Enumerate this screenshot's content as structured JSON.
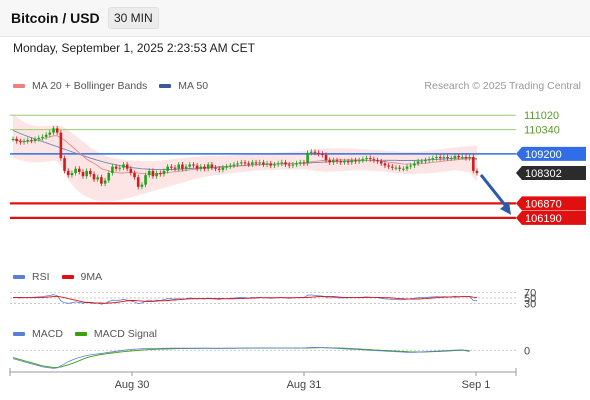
{
  "header": {
    "pair": "Bitcoin / USD",
    "timeframe": "30 MIN"
  },
  "timestamp": "Monday, September 1, 2025 2:23:53 AM CET",
  "legend_price": [
    {
      "label": "MA 20 + Bollinger Bands",
      "color": "#f08080"
    },
    {
      "label": "MA 50",
      "color": "#3a5a9a"
    }
  ],
  "credit": "Research © 2025 Trading Central",
  "legend_rsi": [
    {
      "label": "RSI",
      "color": "#5b7fd6"
    },
    {
      "label": "9MA",
      "color": "#e01010"
    }
  ],
  "legend_macd": [
    {
      "label": "MACD",
      "color": "#5b7fd6"
    },
    {
      "label": "MACD Signal",
      "color": "#3aa10a"
    }
  ],
  "colors": {
    "up": "#1aa51a",
    "down": "#d11c1c",
    "resistance": "#98cf6a",
    "pivot": "#2f6ee6",
    "support": "#e01010",
    "last": "#2b2b2b",
    "band_fill": "#fde2e2",
    "arrow": "#2a5aa8"
  },
  "chart_data": {
    "type": "candlestick",
    "price_range": [
      104300,
      112300
    ],
    "x_labels": [
      "Aug 30",
      "Aug 31",
      "Sep 1"
    ],
    "levels": [
      {
        "value": 111020,
        "label": "111020",
        "kind": "resistance"
      },
      {
        "value": 110340,
        "label": "110340",
        "kind": "resistance"
      },
      {
        "value": 109200,
        "label": "109200",
        "kind": "pivot"
      },
      {
        "value": 108302,
        "label": "108302",
        "kind": "last"
      },
      {
        "value": 106870,
        "label": "106870",
        "kind": "support"
      },
      {
        "value": 106190,
        "label": "106190",
        "kind": "support"
      }
    ],
    "close": [
      109900,
      109800,
      109750,
      109800,
      109850,
      109820,
      109900,
      109950,
      110000,
      110100,
      110200,
      110400,
      110200,
      109000,
      108400,
      108200,
      108300,
      108500,
      108350,
      108150,
      108400,
      108250,
      108000,
      108100,
      107800,
      107950,
      108300,
      108600,
      108500,
      108550,
      108700,
      108500,
      108300,
      108100,
      107650,
      107750,
      108200,
      108400,
      108150,
      108300,
      108250,
      108400,
      108600,
      108550,
      108500,
      108700,
      108500,
      108600,
      108700,
      108650,
      108500,
      108600,
      108500,
      108700,
      108550,
      108500,
      108450,
      108550,
      108600,
      108650,
      108700,
      108750,
      108800,
      108750,
      108700,
      108800,
      108750,
      108800,
      108700,
      108750,
      108650,
      108700,
      108750,
      108800,
      108700,
      108650,
      108700,
      108750,
      108800,
      108750,
      109250,
      109300,
      109250,
      109200,
      109150,
      108900,
      108800,
      108900,
      108850,
      108800,
      108850,
      108800,
      108900,
      108850,
      108900,
      108950,
      109000,
      108950,
      108900,
      108850,
      108750,
      108650,
      108600,
      108550,
      108550,
      108500,
      108500,
      108600,
      108650,
      108750,
      108850,
      108850,
      108900,
      108950,
      109000,
      109050,
      109000,
      109050,
      109000,
      109000,
      109100,
      109050,
      109050,
      109000,
      109050,
      108400,
      108302
    ],
    "ma20": [
      109900,
      109860,
      109800,
      109780,
      109780,
      109800,
      109830,
      109860,
      109900,
      109950,
      110000,
      110050,
      110050,
      109950,
      109850,
      109700,
      109550,
      109400,
      109250,
      109100,
      108950,
      108850,
      108750,
      108650,
      108500,
      108450,
      108400,
      108350,
      108330,
      108300,
      108300,
      108320,
      108330,
      108330,
      108300,
      108280,
      108260,
      108250,
      108250,
      108250,
      108270,
      108300,
      108320,
      108340,
      108360,
      108380,
      108400,
      108420,
      108450,
      108470,
      108490,
      108510,
      108520,
      108530,
      108540,
      108550,
      108560,
      108570,
      108580,
      108600,
      108610,
      108620,
      108640,
      108650,
      108660,
      108680,
      108690,
      108700,
      108710,
      108720,
      108720,
      108730,
      108730,
      108740,
      108740,
      108740,
      108740,
      108750,
      108760,
      108770,
      108800,
      108830,
      108850,
      108870,
      108890,
      108900,
      108910,
      108910,
      108920,
      108920,
      108920,
      108920,
      108920,
      108920,
      108910,
      108910,
      108900,
      108890,
      108880,
      108870,
      108850,
      108830,
      108810,
      108790,
      108770,
      108750,
      108730,
      108720,
      108720,
      108720,
      108730,
      108740,
      108760,
      108780,
      108800,
      108820,
      108840,
      108860,
      108880,
      108900,
      108920,
      108930,
      108950,
      108960,
      108970,
      108950,
      108930
    ],
    "ma50": [
      110300,
      110230,
      110160,
      110090,
      110020,
      109960,
      109900,
      109840,
      109780,
      109720,
      109660,
      109600,
      109540,
      109480,
      109420,
      109360,
      109300,
      109240,
      109180,
      109120,
      109060,
      109000,
      108950,
      108900,
      108850,
      108800,
      108760,
      108720,
      108680,
      108650,
      108620,
      108590,
      108560,
      108540,
      108520,
      108500,
      108490,
      108480,
      108470,
      108460,
      108460,
      108460,
      108460,
      108460,
      108470,
      108480,
      108490,
      108500,
      108510,
      108520,
      108530,
      108540,
      108550,
      108560,
      108570,
      108580,
      108590,
      108600,
      108610,
      108620,
      108630,
      108640,
      108650,
      108660,
      108670,
      108680,
      108690,
      108700,
      108700,
      108710,
      108710,
      108720,
      108720,
      108730,
      108730,
      108740,
      108740,
      108750,
      108750,
      108760,
      108770,
      108780,
      108790,
      108800,
      108810,
      108820,
      108830,
      108840,
      108850,
      108850,
      108860,
      108860,
      108870,
      108870,
      108880,
      108880,
      108890,
      108890,
      108900,
      108900,
      108900,
      108900,
      108900,
      108900,
      108900,
      108890,
      108890,
      108890,
      108890,
      108890,
      108900,
      108900,
      108910,
      108920,
      108930,
      108940,
      108950,
      108960,
      108970,
      108980,
      108990,
      109000,
      109000,
      109010,
      109020,
      109000,
      108980
    ],
    "bb_upper": [
      111100,
      110950,
      110800,
      110700,
      110620,
      110560,
      110520,
      110500,
      110500,
      110510,
      110520,
      110540,
      110540,
      110500,
      110420,
      110320,
      110200,
      110060,
      109920,
      109780,
      109640,
      109520,
      109400,
      109300,
      109200,
      109120,
      109060,
      109010,
      108970,
      108940,
      108920,
      108900,
      108890,
      108880,
      108870,
      108860,
      108860,
      108860,
      108860,
      108870,
      108880,
      108900,
      108920,
      108940,
      108960,
      108980,
      109000,
      109020,
      109040,
      109060,
      109070,
      109080,
      109090,
      109100,
      109100,
      109100,
      109100,
      109110,
      109120,
      109130,
      109140,
      109150,
      109160,
      109170,
      109180,
      109190,
      109200,
      109210,
      109220,
      109230,
      109240,
      109250,
      109260,
      109270,
      109280,
      109290,
      109300,
      109310,
      109320,
      109330,
      109360,
      109390,
      109410,
      109430,
      109450,
      109460,
      109460,
      109460,
      109460,
      109460,
      109460,
      109450,
      109440,
      109430,
      109420,
      109410,
      109400,
      109390,
      109380,
      109370,
      109360,
      109350,
      109340,
      109330,
      109320,
      109310,
      109300,
      109300,
      109300,
      109300,
      109310,
      109320,
      109340,
      109360,
      109380,
      109400,
      109420,
      109440,
      109460,
      109480,
      109500,
      109520,
      109540,
      109550,
      109560,
      109580,
      109600
    ],
    "bb_lower": [
      109000,
      108950,
      108900,
      108860,
      108830,
      108810,
      108800,
      108800,
      108810,
      108830,
      108860,
      108880,
      108850,
      108600,
      108300,
      108000,
      107750,
      107550,
      107400,
      107280,
      107180,
      107100,
      107050,
      107000,
      106980,
      106970,
      106970,
      106980,
      107000,
      107030,
      107060,
      107100,
      107150,
      107200,
      107250,
      107300,
      107350,
      107400,
      107450,
      107500,
      107550,
      107600,
      107650,
      107700,
      107750,
      107800,
      107850,
      107900,
      107950,
      108000,
      108040,
      108080,
      108110,
      108140,
      108170,
      108200,
      108220,
      108240,
      108260,
      108280,
      108300,
      108320,
      108340,
      108360,
      108380,
      108400,
      108410,
      108420,
      108430,
      108440,
      108440,
      108450,
      108450,
      108460,
      108460,
      108460,
      108460,
      108460,
      108470,
      108480,
      108450,
      108420,
      108400,
      108380,
      108360,
      108350,
      108360,
      108370,
      108380,
      108390,
      108400,
      108410,
      108420,
      108420,
      108420,
      108420,
      108420,
      108410,
      108400,
      108390,
      108380,
      108360,
      108340,
      108320,
      108300,
      108280,
      108260,
      108250,
      108250,
      108250,
      108260,
      108270,
      108280,
      108290,
      108300,
      108320,
      108340,
      108360,
      108380,
      108400,
      108420,
      108400,
      108380,
      108350,
      108320,
      108100,
      107900
    ],
    "rsi": [
      52,
      51,
      50,
      51,
      52,
      51,
      53,
      54,
      55,
      57,
      59,
      62,
      58,
      40,
      33,
      31,
      33,
      36,
      34,
      31,
      35,
      33,
      30,
      32,
      28,
      31,
      37,
      42,
      41,
      42,
      45,
      42,
      39,
      36,
      30,
      32,
      39,
      43,
      39,
      42,
      41,
      44,
      48,
      47,
      46,
      50,
      46,
      48,
      50,
      49,
      46,
      48,
      46,
      50,
      47,
      46,
      45,
      47,
      48,
      49,
      50,
      51,
      52,
      51,
      50,
      52,
      51,
      52,
      50,
      51,
      49,
      50,
      51,
      52,
      50,
      49,
      50,
      51,
      52,
      51,
      60,
      61,
      59,
      58,
      57,
      52,
      50,
      52,
      51,
      50,
      51,
      50,
      52,
      51,
      52,
      53,
      54,
      53,
      52,
      51,
      49,
      47,
      46,
      45,
      45,
      44,
      44,
      46,
      47,
      49,
      51,
      51,
      52,
      53,
      54,
      55,
      54,
      55,
      54,
      54,
      56,
      55,
      55,
      54,
      55,
      41,
      40
    ],
    "rsi_ma": [
      52,
      52,
      52,
      51,
      51,
      51,
      51,
      52,
      52,
      53,
      54,
      55,
      56,
      54,
      51,
      48,
      45,
      42,
      39,
      36,
      34,
      34,
      33,
      32,
      32,
      31,
      32,
      33,
      34,
      36,
      38,
      40,
      41,
      41,
      40,
      39,
      38,
      38,
      38,
      39,
      40,
      40,
      41,
      42,
      43,
      44,
      45,
      46,
      47,
      47,
      48,
      48,
      48,
      48,
      48,
      48,
      48,
      48,
      47,
      47,
      47,
      48,
      48,
      49,
      49,
      50,
      50,
      51,
      51,
      51,
      51,
      51,
      51,
      51,
      51,
      51,
      51,
      51,
      51,
      51,
      52,
      53,
      54,
      55,
      55,
      55,
      55,
      55,
      54,
      53,
      52,
      52,
      51,
      51,
      51,
      51,
      52,
      52,
      52,
      52,
      52,
      51,
      51,
      50,
      49,
      48,
      47,
      46,
      46,
      46,
      46,
      47,
      48,
      49,
      50,
      51,
      52,
      53,
      53,
      54,
      54,
      54,
      55,
      55,
      55,
      53,
      51
    ],
    "macd": [
      -80,
      -90,
      -100,
      -110,
      -120,
      -130,
      -140,
      -150,
      -160,
      -165,
      -170,
      -175,
      -170,
      -150,
      -130,
      -110,
      -95,
      -80,
      -70,
      -60,
      -50,
      -45,
      -40,
      -35,
      -30,
      -25,
      -20,
      -15,
      -10,
      -5,
      0,
      5,
      8,
      10,
      12,
      14,
      15,
      16,
      17,
      18,
      18,
      19,
      19,
      20,
      20,
      20,
      20,
      20,
      20,
      20,
      20,
      20,
      20,
      20,
      19,
      19,
      19,
      19,
      20,
      20,
      20,
      21,
      21,
      22,
      22,
      22,
      23,
      23,
      23,
      22,
      22,
      22,
      22,
      21,
      21,
      21,
      21,
      20,
      21,
      22,
      25,
      27,
      28,
      27,
      26,
      24,
      22,
      20,
      18,
      16,
      14,
      12,
      10,
      8,
      6,
      4,
      2,
      0,
      -2,
      -4,
      -6,
      -8,
      -10,
      -12,
      -14,
      -16,
      -18,
      -20,
      -21,
      -20,
      -18,
      -16,
      -14,
      -12,
      -10,
      -8,
      -6,
      -4,
      -2,
      0,
      2,
      4,
      5,
      -5,
      -12
    ],
    "macd_signal": [
      -70,
      -80,
      -90,
      -100,
      -110,
      -120,
      -130,
      -140,
      -150,
      -155,
      -160,
      -165,
      -165,
      -160,
      -150,
      -140,
      -128,
      -115,
      -100,
      -85,
      -72,
      -62,
      -54,
      -47,
      -41,
      -35,
      -30,
      -26,
      -22,
      -18,
      -14,
      -10,
      -7,
      -4,
      -1,
      2,
      4,
      6,
      8,
      10,
      11,
      12,
      13,
      14,
      15,
      16,
      17,
      17,
      18,
      18,
      18,
      19,
      19,
      19,
      19,
      19,
      19,
      19,
      19,
      19,
      19,
      20,
      20,
      20,
      20,
      21,
      21,
      21,
      21,
      21,
      21,
      21,
      21,
      21,
      21,
      21,
      21,
      21,
      21,
      21,
      22,
      23,
      24,
      25,
      25,
      25,
      24,
      23,
      22,
      21,
      20,
      18,
      16,
      14,
      12,
      10,
      8,
      6,
      4,
      2,
      0,
      -2,
      -4,
      -6,
      -8,
      -10,
      -12,
      -14,
      -16,
      -17,
      -17,
      -17,
      -16,
      -15,
      -14,
      -13,
      -11,
      -9,
      -7,
      -5,
      -3,
      -1,
      1,
      0,
      -3
    ],
    "rsi_levels": [
      70,
      50,
      30
    ],
    "macd_range": [
      -190,
      70
    ],
    "macd_zero": 0
  }
}
